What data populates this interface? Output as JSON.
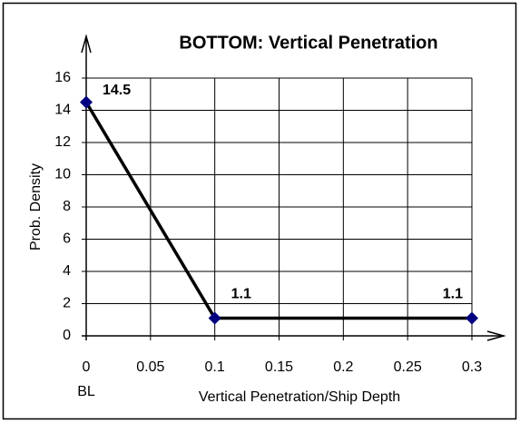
{
  "chart_data": {
    "type": "line",
    "title": "BOTTOM: Vertical Penetration",
    "x_label": "Vertical Penetration/Ship Depth",
    "y_label": "Prob. Density",
    "annotation": "BL",
    "x": [
      0,
      0.1,
      0.3
    ],
    "series": [
      {
        "name": "Vertical Penetration",
        "color": "#000080",
        "values": [
          14.5,
          1.1,
          1.1
        ]
      }
    ],
    "xlim": [
      0,
      0.3
    ],
    "xticks": [
      0,
      0.05,
      0.1,
      0.15,
      0.2,
      0.25,
      0.3
    ],
    "ylim": [
      0,
      16
    ],
    "yticks": [
      0,
      2,
      4,
      6,
      8,
      10,
      12,
      14,
      16
    ],
    "grid": true
  }
}
